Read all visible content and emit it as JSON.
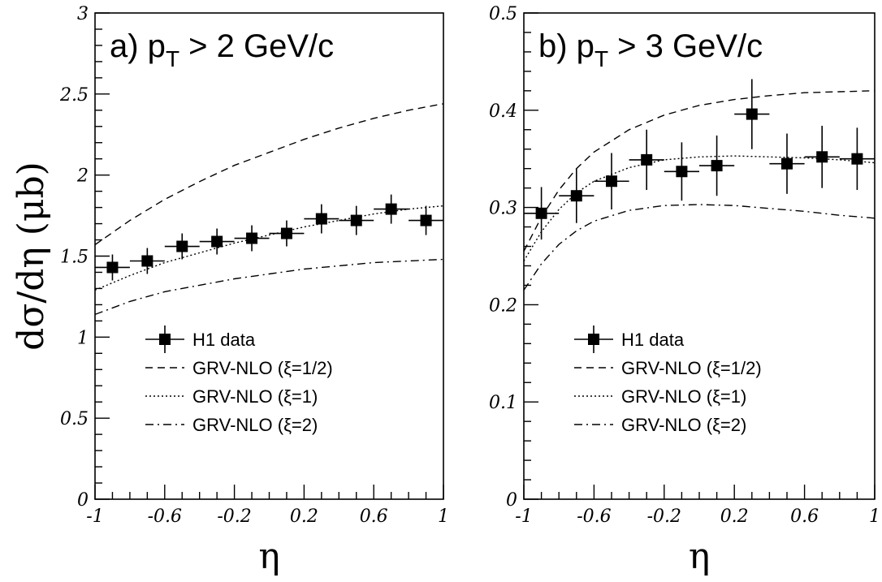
{
  "chart_data": [
    {
      "type": "scatter",
      "title": "a) p",
      "title_sub": "T",
      "title_rest": " > 2  GeV/c",
      "ylabel": "dσ/dη (μb)",
      "xlabel": "η",
      "xlim": [
        -1,
        1
      ],
      "ylim": [
        0,
        3
      ],
      "xticks": [
        -1,
        -0.6,
        -0.2,
        0.2,
        0.6,
        1
      ],
      "xtick_labels": [
        "-1",
        "-0.6",
        "-0.2",
        "0.2",
        "0.6",
        "1"
      ],
      "yticks": [
        0,
        0.5,
        1,
        1.5,
        2,
        2.5,
        3
      ],
      "ytick_labels": [
        "0",
        "0.5",
        "1",
        "1.5",
        "2",
        "2.5",
        "3"
      ],
      "data": {
        "name": "H1 data",
        "x": [
          -0.9,
          -0.7,
          -0.5,
          -0.3,
          -0.1,
          0.1,
          0.3,
          0.5,
          0.7,
          0.9
        ],
        "y": [
          1.43,
          1.47,
          1.56,
          1.59,
          1.61,
          1.64,
          1.73,
          1.72,
          1.79,
          1.72
        ],
        "err": [
          0.08,
          0.08,
          0.08,
          0.08,
          0.08,
          0.08,
          0.09,
          0.09,
          0.09,
          0.09
        ],
        "xerr": 0.1
      },
      "curves": [
        {
          "name": "GRV-NLO (ξ=1/2)",
          "style": "dashed",
          "x": [
            -1,
            -0.8,
            -0.6,
            -0.4,
            -0.2,
            0,
            0.2,
            0.4,
            0.6,
            0.8,
            1
          ],
          "y": [
            1.57,
            1.72,
            1.85,
            1.96,
            2.06,
            2.14,
            2.22,
            2.29,
            2.35,
            2.4,
            2.44
          ]
        },
        {
          "name": "GRV-NLO (ξ=1)",
          "style": "dotted",
          "x": [
            -1,
            -0.8,
            -0.6,
            -0.4,
            -0.2,
            0,
            0.2,
            0.4,
            0.6,
            0.8,
            1
          ],
          "y": [
            1.29,
            1.38,
            1.46,
            1.52,
            1.58,
            1.63,
            1.68,
            1.72,
            1.76,
            1.79,
            1.81
          ]
        },
        {
          "name": "GRV-NLO (ξ=2)",
          "style": "dashdot",
          "x": [
            -1,
            -0.8,
            -0.6,
            -0.4,
            -0.2,
            0,
            0.2,
            0.4,
            0.6,
            0.8,
            1
          ],
          "y": [
            1.14,
            1.22,
            1.28,
            1.32,
            1.36,
            1.39,
            1.42,
            1.44,
            1.46,
            1.47,
            1.48
          ]
        }
      ],
      "legend_placement": "lower-left"
    },
    {
      "type": "scatter",
      "title": "b) p",
      "title_sub": "T",
      "title_rest": " > 3  GeV/c",
      "ylabel": "",
      "xlabel": "η",
      "xlim": [
        -1,
        1
      ],
      "ylim": [
        0,
        0.5
      ],
      "xticks": [
        -1,
        -0.6,
        -0.2,
        0.2,
        0.6,
        1
      ],
      "xtick_labels": [
        "-1",
        "-0.6",
        "-0.2",
        "0.2",
        "0.6",
        "1"
      ],
      "yticks": [
        0,
        0.1,
        0.2,
        0.3,
        0.4,
        0.5
      ],
      "ytick_labels": [
        "0",
        "0.1",
        "0.2",
        "0.3",
        "0.4",
        "0.5"
      ],
      "data": {
        "name": "H1 data",
        "x": [
          -0.9,
          -0.7,
          -0.5,
          -0.3,
          -0.1,
          0.1,
          0.3,
          0.5,
          0.7,
          0.9
        ],
        "y": [
          0.294,
          0.312,
          0.327,
          0.349,
          0.337,
          0.343,
          0.396,
          0.345,
          0.352,
          0.35
        ],
        "err": [
          0.027,
          0.028,
          0.029,
          0.031,
          0.03,
          0.031,
          0.036,
          0.031,
          0.032,
          0.032
        ],
        "xerr": 0.1
      },
      "curves": [
        {
          "name": "GRV-NLO (ξ=1/2)",
          "style": "dashed",
          "x": [
            -1,
            -0.9,
            -0.8,
            -0.7,
            -0.6,
            -0.4,
            -0.2,
            0,
            0.2,
            0.4,
            0.6,
            0.8,
            1
          ],
          "y": [
            0.255,
            0.29,
            0.318,
            0.34,
            0.357,
            0.38,
            0.395,
            0.405,
            0.411,
            0.415,
            0.418,
            0.419,
            0.42
          ]
        },
        {
          "name": "GRV-NLO (ξ=1)",
          "style": "dotted",
          "x": [
            -1,
            -0.9,
            -0.8,
            -0.7,
            -0.6,
            -0.4,
            -0.2,
            0,
            0.2,
            0.4,
            0.6,
            0.8,
            1
          ],
          "y": [
            0.245,
            0.275,
            0.298,
            0.315,
            0.327,
            0.341,
            0.349,
            0.352,
            0.353,
            0.352,
            0.351,
            0.349,
            0.346
          ]
        },
        {
          "name": "GRV-NLO (ξ=2)",
          "style": "dashdot",
          "x": [
            -1,
            -0.9,
            -0.8,
            -0.7,
            -0.6,
            -0.4,
            -0.2,
            0,
            0.2,
            0.4,
            0.6,
            0.8,
            1
          ],
          "y": [
            0.215,
            0.242,
            0.262,
            0.276,
            0.286,
            0.297,
            0.302,
            0.303,
            0.302,
            0.299,
            0.296,
            0.292,
            0.289
          ]
        }
      ],
      "legend_placement": "lower-left"
    }
  ]
}
